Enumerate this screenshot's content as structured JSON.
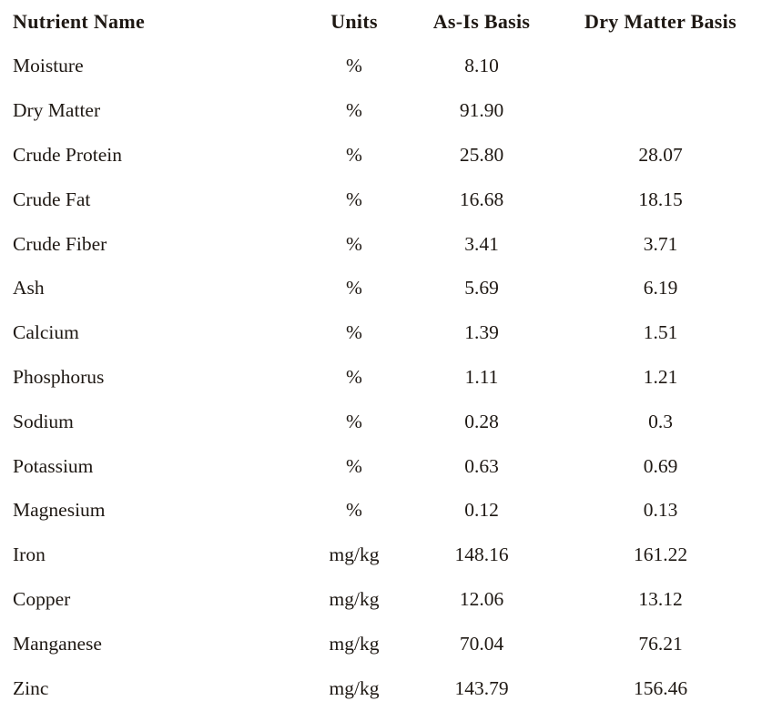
{
  "table": {
    "headers": {
      "name": "Nutrient Name",
      "units": "Units",
      "as_is": "As-Is Basis",
      "dry_matter": "Dry Matter Basis"
    },
    "rows": [
      {
        "name": "Moisture",
        "units": "%",
        "as_is": "8.10",
        "dry_matter": ""
      },
      {
        "name": "Dry Matter",
        "units": "%",
        "as_is": "91.90",
        "dry_matter": ""
      },
      {
        "name": "Crude Protein",
        "units": "%",
        "as_is": "25.80",
        "dry_matter": "28.07"
      },
      {
        "name": "Crude Fat",
        "units": "%",
        "as_is": "16.68",
        "dry_matter": "18.15"
      },
      {
        "name": "Crude Fiber",
        "units": "%",
        "as_is": "3.41",
        "dry_matter": "3.71"
      },
      {
        "name": "Ash",
        "units": "%",
        "as_is": "5.69",
        "dry_matter": "6.19"
      },
      {
        "name": "Calcium",
        "units": "%",
        "as_is": "1.39",
        "dry_matter": "1.51"
      },
      {
        "name": "Phosphorus",
        "units": "%",
        "as_is": "1.11",
        "dry_matter": "1.21"
      },
      {
        "name": "Sodium",
        "units": "%",
        "as_is": "0.28",
        "dry_matter": "0.3"
      },
      {
        "name": "Potassium",
        "units": "%",
        "as_is": "0.63",
        "dry_matter": "0.69"
      },
      {
        "name": "Magnesium",
        "units": "%",
        "as_is": "0.12",
        "dry_matter": "0.13"
      },
      {
        "name": "Iron",
        "units": "mg/kg",
        "as_is": "148.16",
        "dry_matter": "161.22"
      },
      {
        "name": "Copper",
        "units": "mg/kg",
        "as_is": "12.06",
        "dry_matter": "13.12"
      },
      {
        "name": "Manganese",
        "units": "mg/kg",
        "as_is": "70.04",
        "dry_matter": "76.21"
      },
      {
        "name": "Zinc",
        "units": "mg/kg",
        "as_is": "143.79",
        "dry_matter": "156.46"
      }
    ]
  },
  "colors": {
    "text": "#1e1813",
    "background": "#ffffff"
  }
}
